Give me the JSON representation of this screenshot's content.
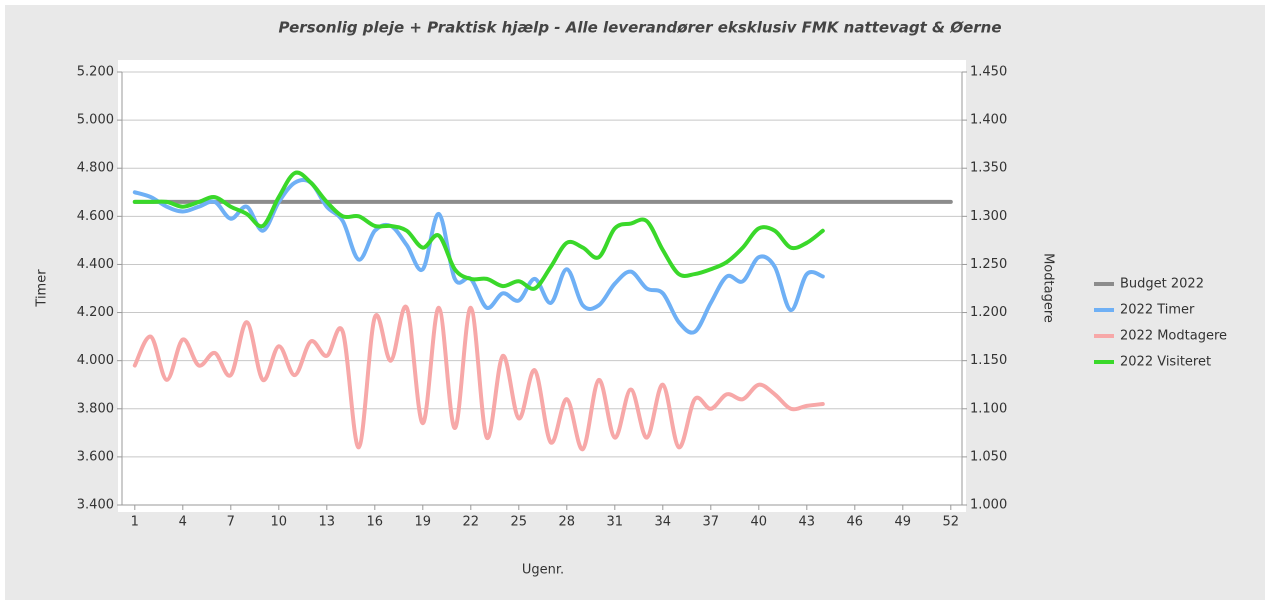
{
  "chart_data": {
    "type": "line",
    "title": "Personlig pleje + Praktisk hjælp - Alle leverandører eksklusiv FMK nattevagt & Øerne",
    "xlabel": "Ugenr.",
    "ylabel": "Timer",
    "y2label": "Modtagere",
    "x": [
      1,
      2,
      3,
      4,
      5,
      6,
      7,
      8,
      9,
      10,
      11,
      12,
      13,
      14,
      15,
      16,
      17,
      18,
      19,
      20,
      21,
      22,
      23,
      24,
      25,
      26,
      27,
      28,
      29,
      30,
      31,
      32,
      33,
      34,
      35,
      36,
      37,
      38,
      39,
      40,
      41,
      42,
      43,
      44,
      45,
      46,
      47,
      48,
      49,
      50,
      51,
      52
    ],
    "xlim": [
      0.2,
      52.7
    ],
    "xticks": [
      1,
      4,
      7,
      10,
      13,
      16,
      19,
      22,
      25,
      28,
      31,
      34,
      37,
      40,
      43,
      46,
      49,
      52
    ],
    "ylim": [
      3400,
      5200
    ],
    "yticks": [
      {
        "value": 3400,
        "label": "3.400"
      },
      {
        "value": 3600,
        "label": "3.600"
      },
      {
        "value": 3800,
        "label": "3.800"
      },
      {
        "value": 4000,
        "label": "4.000"
      },
      {
        "value": 4200,
        "label": "4.200"
      },
      {
        "value": 4400,
        "label": "4.400"
      },
      {
        "value": 4600,
        "label": "4.600"
      },
      {
        "value": 4800,
        "label": "4.800"
      },
      {
        "value": 5000,
        "label": "5.000"
      },
      {
        "value": 5200,
        "label": "5.200"
      }
    ],
    "y2lim": [
      1000,
      1450
    ],
    "y2ticks": [
      {
        "value": 1000,
        "label": "1.000"
      },
      {
        "value": 1050,
        "label": "1.050"
      },
      {
        "value": 1100,
        "label": "1.100"
      },
      {
        "value": 1150,
        "label": "1.150"
      },
      {
        "value": 1200,
        "label": "1.200"
      },
      {
        "value": 1250,
        "label": "1.250"
      },
      {
        "value": 1300,
        "label": "1.300"
      },
      {
        "value": 1350,
        "label": "1.350"
      },
      {
        "value": 1400,
        "label": "1.400"
      },
      {
        "value": 1450,
        "label": "1.450"
      }
    ],
    "grid": true,
    "legend": "right",
    "series": [
      {
        "name": "Budget 2022",
        "color": "#8c8c8c",
        "values": [
          4660,
          4660,
          4660,
          4660,
          4660,
          4660,
          4660,
          4660,
          4660,
          4660,
          4660,
          4660,
          4660,
          4660,
          4660,
          4660,
          4660,
          4660,
          4660,
          4660,
          4660,
          4660,
          4660,
          4660,
          4660,
          4660,
          4660,
          4660,
          4660,
          4660,
          4660,
          4660,
          4660,
          4660,
          4660,
          4660,
          4660,
          4660,
          4660,
          4660,
          4660,
          4660,
          4660,
          4660,
          4660,
          4660,
          4660,
          4660,
          4660,
          4660,
          4660,
          4660
        ]
      },
      {
        "name": "2022 Timer",
        "color": "#6fb0f5",
        "values": [
          4700,
          4680,
          4640,
          4620,
          4640,
          4660,
          4590,
          4640,
          4540,
          4660,
          4740,
          4740,
          4640,
          4580,
          4420,
          4540,
          4560,
          4480,
          4380,
          4610,
          4340,
          4340,
          4220,
          4280,
          4250,
          4340,
          4240,
          4380,
          4230,
          4230,
          4320,
          4370,
          4300,
          4280,
          4160,
          4120,
          4240,
          4350,
          4330,
          4430,
          4390,
          4210,
          4360,
          4350,
          null,
          null,
          null,
          null,
          null,
          null,
          null,
          null
        ]
      },
      {
        "name": "2022 Modtagere",
        "color": "#f7a8a8",
        "axis": "y2",
        "values": [
          1145,
          1175,
          1130,
          1172,
          1145,
          1158,
          1135,
          1190,
          1130,
          1165,
          1135,
          1170,
          1155,
          1180,
          1060,
          1195,
          1150,
          1205,
          1085,
          1205,
          1080,
          1205,
          1070,
          1155,
          1090,
          1140,
          1065,
          1110,
          1058,
          1130,
          1070,
          1120,
          1070,
          1125,
          1060,
          1110,
          1100,
          1115,
          1110,
          1125,
          1115,
          1100,
          1103,
          1105,
          null,
          null,
          null,
          null,
          null,
          null,
          null,
          null
        ]
      },
      {
        "name": "2022 Visiteret",
        "color": "#3ad82a",
        "values": [
          4660,
          4660,
          4660,
          4640,
          4660,
          4680,
          4640,
          4610,
          4560,
          4680,
          4780,
          4740,
          4660,
          4600,
          4600,
          4560,
          4560,
          4540,
          4470,
          4520,
          4380,
          4340,
          4340,
          4310,
          4330,
          4300,
          4390,
          4490,
          4470,
          4430,
          4550,
          4570,
          4580,
          4460,
          4360,
          4360,
          4380,
          4410,
          4470,
          4550,
          4540,
          4470,
          4490,
          4540,
          null,
          null,
          null,
          null,
          null,
          null,
          null,
          null
        ]
      }
    ]
  }
}
